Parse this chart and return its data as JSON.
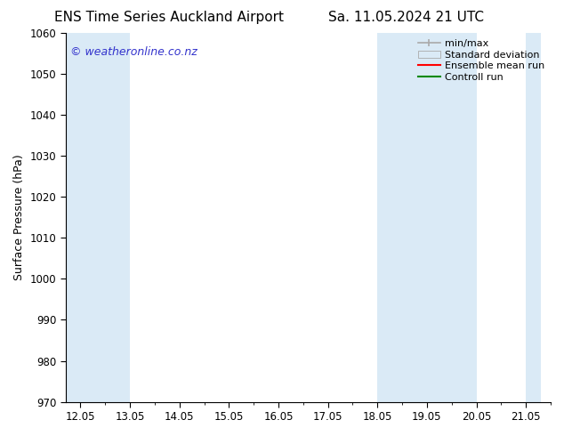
{
  "title_left": "ENS Time Series Auckland Airport",
  "title_right": "Sa. 11.05.2024 21 UTC",
  "ylabel": "Surface Pressure (hPa)",
  "ylim": [
    970,
    1060
  ],
  "yticks": [
    970,
    980,
    990,
    1000,
    1010,
    1020,
    1030,
    1040,
    1050,
    1060
  ],
  "xlim_start": -0.3,
  "xlim_end": 9.3,
  "xtick_labels": [
    "12.05",
    "13.05",
    "14.05",
    "15.05",
    "16.05",
    "17.05",
    "18.05",
    "19.05",
    "20.05",
    "21.05"
  ],
  "xtick_positions": [
    0,
    1,
    2,
    3,
    4,
    5,
    6,
    7,
    8,
    9
  ],
  "watermark": "© weatheronline.co.nz",
  "watermark_color": "#3333cc",
  "bg_color": "#ffffff",
  "plot_bg_color": "#ffffff",
  "shaded_bands": [
    {
      "x_start": -0.3,
      "x_end": 1.0,
      "color": "#daeaf6"
    },
    {
      "x_start": 6.0,
      "x_end": 8.0,
      "color": "#daeaf6"
    },
    {
      "x_start": 9.0,
      "x_end": 9.3,
      "color": "#daeaf6"
    }
  ],
  "minmax_color": "#aaaaaa",
  "stddev_color": "#daeaf6",
  "stddev_edge_color": "#aaaaaa",
  "ensemble_color": "#ff0000",
  "control_color": "#008800",
  "title_fontsize": 11,
  "tick_fontsize": 8.5,
  "ylabel_fontsize": 9,
  "legend_fontsize": 8,
  "watermark_fontsize": 9
}
